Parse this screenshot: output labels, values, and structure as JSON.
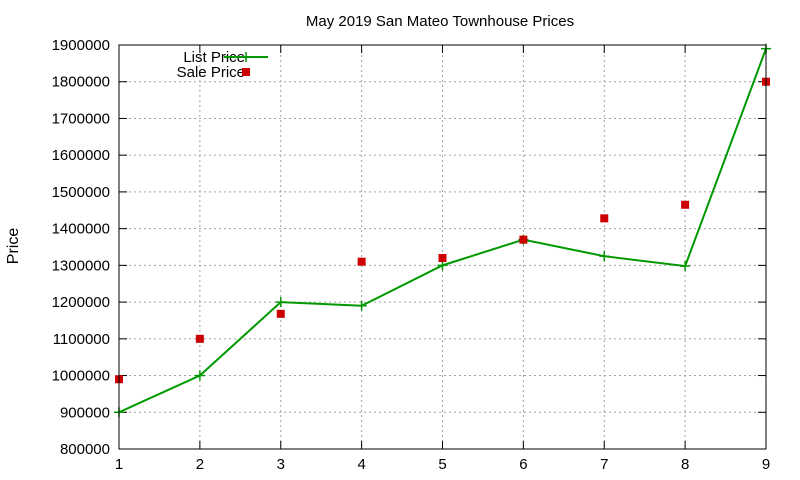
{
  "chart_data": {
    "type": "line",
    "title": "May 2019 San Mateo Townhouse Prices",
    "xlabel": "",
    "ylabel": "Price",
    "xlim": [
      1,
      9
    ],
    "ylim": [
      800000,
      1900000
    ],
    "x_ticks": [
      1,
      2,
      3,
      4,
      5,
      6,
      7,
      8,
      9
    ],
    "y_ticks": [
      800000,
      900000,
      1000000,
      1100000,
      1200000,
      1300000,
      1400000,
      1500000,
      1600000,
      1700000,
      1800000,
      1900000
    ],
    "grid": true,
    "legend_position": "top-left",
    "series": [
      {
        "name": "List Price",
        "style": "line-points",
        "marker": "plus",
        "color": "#009900",
        "x": [
          1,
          2,
          3,
          4,
          5,
          6,
          7,
          8,
          9
        ],
        "values": [
          900000,
          1000000,
          1200000,
          1190000,
          1300000,
          1370000,
          1325000,
          1298000,
          1890000
        ]
      },
      {
        "name": "Sale Price",
        "style": "points",
        "marker": "square",
        "color": "#cc0000",
        "x": [
          1,
          2,
          3,
          4,
          5,
          6,
          7,
          8,
          9
        ],
        "values": [
          990000,
          1100000,
          1168000,
          1310000,
          1320000,
          1370000,
          1428000,
          1465000,
          1800000
        ]
      }
    ]
  }
}
